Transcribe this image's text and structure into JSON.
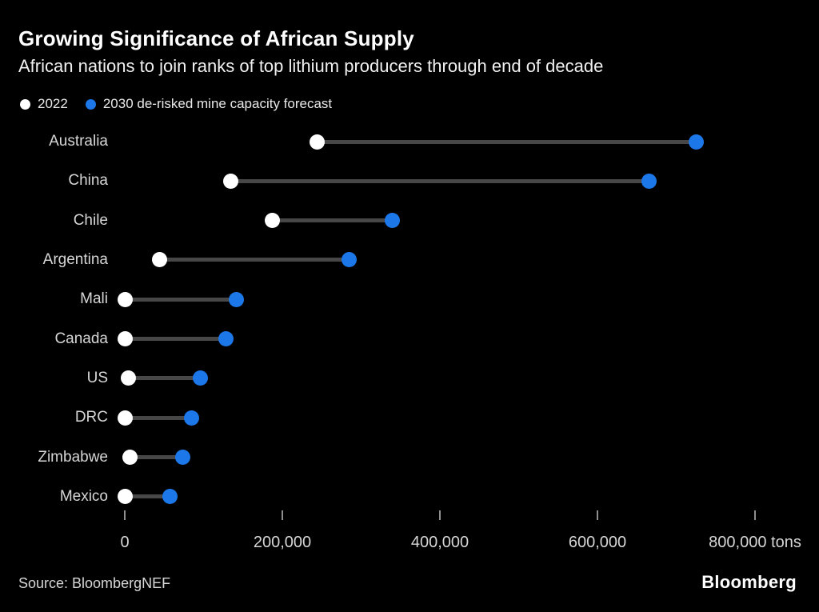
{
  "header": {
    "title": "Growing Significance of African Supply",
    "subtitle": "African nations to join ranks of top lithium producers through end of decade"
  },
  "legend": [
    {
      "label": "2022",
      "color": "#ffffff"
    },
    {
      "label": "2030 de-risked mine capacity forecast",
      "color": "#1c77e8"
    }
  ],
  "chart_data": {
    "type": "dumbbell",
    "title": "Growing Significance of African Supply",
    "subtitle": "African nations to join ranks of top lithium producers through end of decade",
    "orientation": "horizontal",
    "categories": [
      "Australia",
      "China",
      "Chile",
      "Argentina",
      "Mali",
      "Canada",
      "US",
      "DRC",
      "Zimbabwe",
      "Mexico"
    ],
    "series": [
      {
        "name": "2022",
        "color": "#ffffff",
        "values": [
          244000,
          135000,
          187000,
          44000,
          0,
          0,
          5000,
          0,
          7000,
          0
        ]
      },
      {
        "name": "2030 de-risked mine capacity forecast",
        "color": "#1c77e8",
        "values": [
          725000,
          665000,
          340000,
          285000,
          142000,
          128000,
          96000,
          85000,
          74000,
          57000
        ]
      }
    ],
    "xlim": [
      0,
      800000
    ],
    "x_ticks": [
      0,
      200000,
      400000,
      600000,
      800000
    ],
    "x_tick_labels": [
      "0",
      "200,000",
      "400,000",
      "600,000",
      "800,000"
    ],
    "unit": "tons",
    "grid": false,
    "legend_position": "top-left"
  },
  "footer": {
    "source": "Source: BloombergNEF",
    "brand": "Bloomberg"
  },
  "colors": {
    "background": "#000000",
    "text_primary": "#ffffff",
    "text_secondary": "#d6d6d6",
    "connector": "#474747",
    "dot_2022": "#ffffff",
    "dot_2030": "#1c77e8",
    "tick": "#8f8f8f"
  }
}
